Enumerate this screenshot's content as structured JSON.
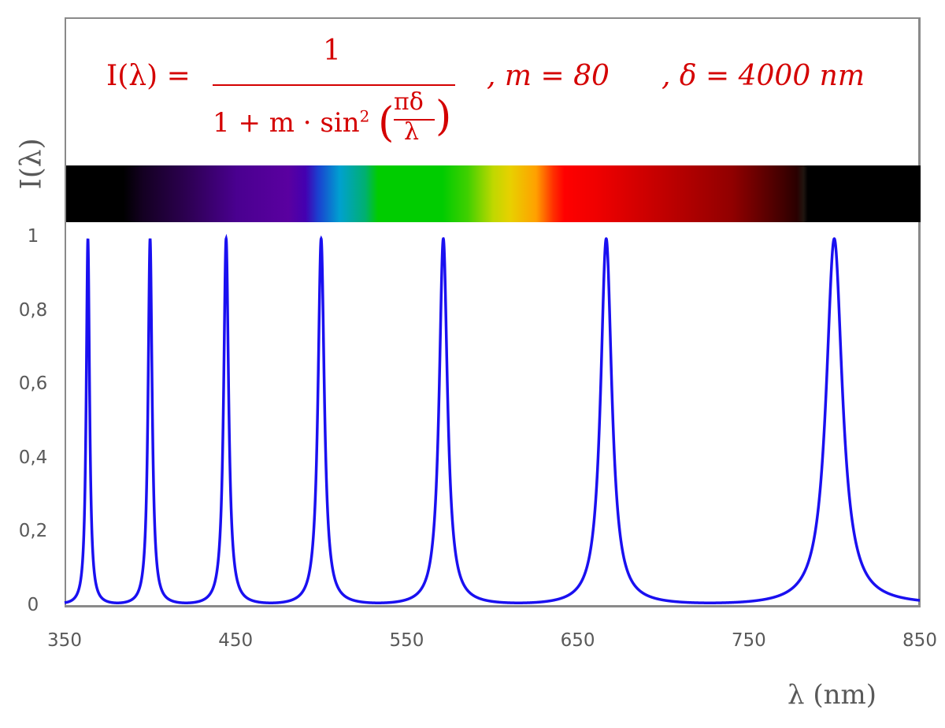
{
  "chart_data": {
    "type": "line",
    "formula": {
      "lhs": "I(λ) =",
      "numerator": "1",
      "denominator_prefix": "1 + m · sin",
      "exponent": "2",
      "inner_num": "πδ",
      "inner_den": "λ",
      "param_m": ",   m = 80",
      "param_delta": ",  δ = 4000 nm"
    },
    "parameters": {
      "m": 80,
      "delta_nm": 4000
    },
    "xlabel": "λ  (nm)",
    "ylabel": "I(λ)",
    "xlim": [
      350,
      850
    ],
    "ylim": [
      0,
      1
    ],
    "xticks": [
      "350",
      "450",
      "550",
      "650",
      "750",
      "850"
    ],
    "yticks": [
      "0",
      "0,2",
      "0,4",
      "0,6",
      "0,8",
      "1"
    ],
    "peaks_nm": [
      363.6,
      400,
      444.4,
      500,
      571.4,
      666.7,
      800
    ],
    "peak_value": 1,
    "minimum_value": 0.0123,
    "grid": false,
    "series": [
      {
        "color": "#1a10f0"
      }
    ],
    "colors": {
      "formula": "#d40000",
      "axis_text": "#595959",
      "frame": "#8a8a8a"
    },
    "spectrum_band": {
      "range_nm": [
        350,
        850
      ],
      "visible_range_approx_nm": [
        385,
        780
      ]
    }
  }
}
